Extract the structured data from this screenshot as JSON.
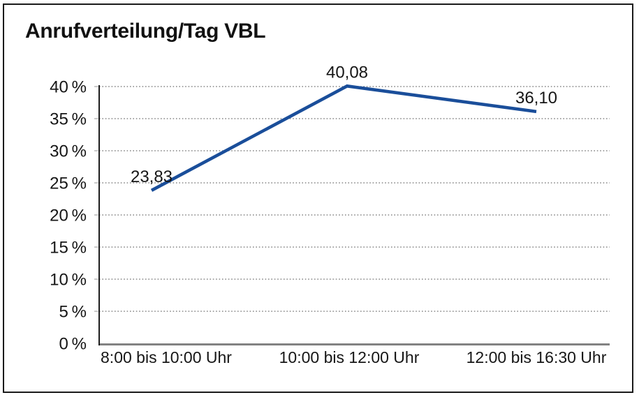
{
  "page": {
    "background": "#ffffff",
    "frame_border_color": "#1a1a1a"
  },
  "chart_data": {
    "type": "line",
    "title": "Anrufverteilung/Tag VBL",
    "categories": [
      "8:00 bis 10:00 Uhr",
      "10:00 bis 12:00 Uhr",
      "12:00 bis 16:30 Uhr"
    ],
    "values": [
      23.83,
      40.08,
      36.1
    ],
    "data_labels": [
      "23,83",
      "40,08",
      "36,10"
    ],
    "xlabel": "",
    "ylabel": "",
    "ylim": [
      0,
      40
    ],
    "ytick_step": 5,
    "ytick_labels": [
      "0 %",
      "5 %",
      "10 %",
      "15 %",
      "20 %",
      "25 %",
      "30 %",
      "35 %",
      "40 %"
    ],
    "grid": "horizontal-dotted",
    "legend": "none",
    "markers": "none",
    "line_color": "#1a4e9a",
    "gridline_color": "#6e6e6e",
    "tick_color": "#a6a6a6",
    "axis_color": "#1c1c1c",
    "baseline_color": "#828282",
    "text_color": "#161616"
  }
}
